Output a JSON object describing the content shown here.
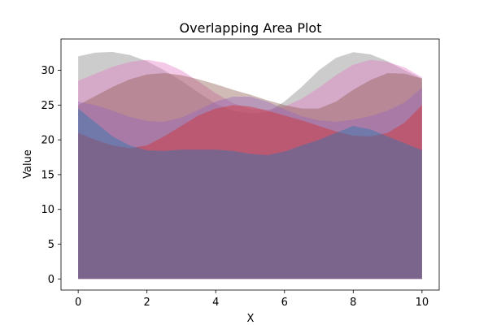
{
  "chart_data": {
    "type": "area",
    "title": "Overlapping Area Plot",
    "xlabel": "X",
    "ylabel": "Value",
    "xlim": [
      -0.5,
      10.5
    ],
    "ylim": [
      -1.6,
      34.5
    ],
    "xticks": [
      0,
      2,
      4,
      6,
      8,
      10
    ],
    "yticks": [
      0,
      5,
      10,
      15,
      20,
      25,
      30
    ],
    "grid": false,
    "legend": "none",
    "x": [
      0,
      0.5,
      1,
      1.5,
      2,
      2.5,
      3,
      3.5,
      4,
      4.5,
      5,
      5.5,
      6,
      6.5,
      7,
      7.5,
      8,
      8.5,
      9,
      9.5,
      10
    ],
    "series": [
      {
        "color": "#7f7f7f",
        "values": [
          32.0,
          32.55,
          32.63,
          32.2,
          31.3,
          30.0,
          28.5,
          26.8,
          25.2,
          24.2,
          23.8,
          24.0,
          25.5,
          27.6,
          30.0,
          31.8,
          32.6,
          32.3,
          31.3,
          30.0,
          28.8
        ]
      },
      {
        "color": "#e377c2",
        "values": [
          28.5,
          29.5,
          30.5,
          31.2,
          31.5,
          31.1,
          30.0,
          28.4,
          26.7,
          25.3,
          24.5,
          24.3,
          24.8,
          25.9,
          27.5,
          29.3,
          30.8,
          31.5,
          31.2,
          30.4,
          29.0
        ]
      },
      {
        "color": "#8c564b",
        "values": [
          25.0,
          26.3,
          27.6,
          28.7,
          29.4,
          29.6,
          29.3,
          28.7,
          28.0,
          27.2,
          26.5,
          25.7,
          25.0,
          24.5,
          24.5,
          25.5,
          27.2,
          28.6,
          29.6,
          29.5,
          28.8
        ]
      },
      {
        "color": "#9467bd",
        "values": [
          25.5,
          25.0,
          24.2,
          23.3,
          22.7,
          22.6,
          23.2,
          24.3,
          25.5,
          26.2,
          26.2,
          25.5,
          24.4,
          23.4,
          22.8,
          22.6,
          22.9,
          23.4,
          24.2,
          25.4,
          27.5
        ]
      },
      {
        "color": "#d62728",
        "values": [
          21.0,
          20.0,
          19.2,
          18.8,
          19.2,
          20.5,
          22.0,
          23.5,
          24.5,
          25.0,
          24.8,
          24.2,
          23.5,
          22.8,
          22.0,
          21.2,
          20.6,
          20.5,
          21.0,
          22.5,
          25.0
        ]
      },
      {
        "color": "#1f77b4",
        "values": [
          24.5,
          22.5,
          20.5,
          19.2,
          18.5,
          18.4,
          18.6,
          18.6,
          18.6,
          18.4,
          18.0,
          17.8,
          18.3,
          19.2,
          20.0,
          21.0,
          22.0,
          21.5,
          20.5,
          19.5,
          18.5
        ]
      }
    ]
  }
}
